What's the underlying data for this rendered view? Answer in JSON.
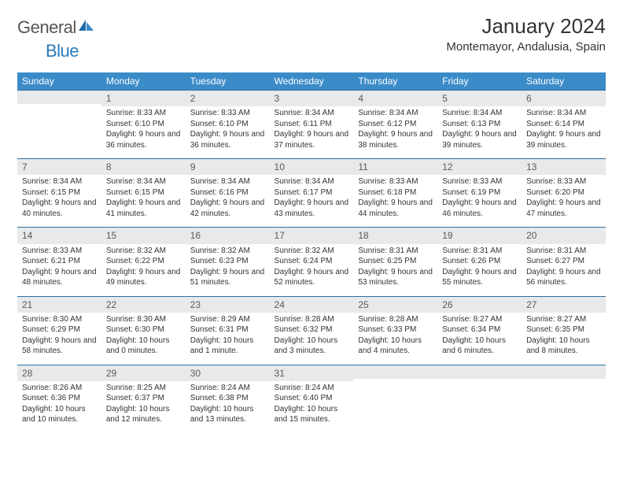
{
  "logo": {
    "text1": "General",
    "text2": "Blue"
  },
  "title": "January 2024",
  "location": "Montemayor, Andalusia, Spain",
  "weekdays": [
    "Sunday",
    "Monday",
    "Tuesday",
    "Wednesday",
    "Thursday",
    "Friday",
    "Saturday"
  ],
  "colors": {
    "header_bg": "#3b8bc9",
    "daynum_bg": "#e7e9eb",
    "day_border": "#2f6fa3"
  },
  "weeks": [
    [
      null,
      {
        "n": "1",
        "sr": "Sunrise: 8:33 AM",
        "ss": "Sunset: 6:10 PM",
        "dl": "Daylight: 9 hours and 36 minutes."
      },
      {
        "n": "2",
        "sr": "Sunrise: 8:33 AM",
        "ss": "Sunset: 6:10 PM",
        "dl": "Daylight: 9 hours and 36 minutes."
      },
      {
        "n": "3",
        "sr": "Sunrise: 8:34 AM",
        "ss": "Sunset: 6:11 PM",
        "dl": "Daylight: 9 hours and 37 minutes."
      },
      {
        "n": "4",
        "sr": "Sunrise: 8:34 AM",
        "ss": "Sunset: 6:12 PM",
        "dl": "Daylight: 9 hours and 38 minutes."
      },
      {
        "n": "5",
        "sr": "Sunrise: 8:34 AM",
        "ss": "Sunset: 6:13 PM",
        "dl": "Daylight: 9 hours and 39 minutes."
      },
      {
        "n": "6",
        "sr": "Sunrise: 8:34 AM",
        "ss": "Sunset: 6:14 PM",
        "dl": "Daylight: 9 hours and 39 minutes."
      }
    ],
    [
      {
        "n": "7",
        "sr": "Sunrise: 8:34 AM",
        "ss": "Sunset: 6:15 PM",
        "dl": "Daylight: 9 hours and 40 minutes."
      },
      {
        "n": "8",
        "sr": "Sunrise: 8:34 AM",
        "ss": "Sunset: 6:15 PM",
        "dl": "Daylight: 9 hours and 41 minutes."
      },
      {
        "n": "9",
        "sr": "Sunrise: 8:34 AM",
        "ss": "Sunset: 6:16 PM",
        "dl": "Daylight: 9 hours and 42 minutes."
      },
      {
        "n": "10",
        "sr": "Sunrise: 8:34 AM",
        "ss": "Sunset: 6:17 PM",
        "dl": "Daylight: 9 hours and 43 minutes."
      },
      {
        "n": "11",
        "sr": "Sunrise: 8:33 AM",
        "ss": "Sunset: 6:18 PM",
        "dl": "Daylight: 9 hours and 44 minutes."
      },
      {
        "n": "12",
        "sr": "Sunrise: 8:33 AM",
        "ss": "Sunset: 6:19 PM",
        "dl": "Daylight: 9 hours and 46 minutes."
      },
      {
        "n": "13",
        "sr": "Sunrise: 8:33 AM",
        "ss": "Sunset: 6:20 PM",
        "dl": "Daylight: 9 hours and 47 minutes."
      }
    ],
    [
      {
        "n": "14",
        "sr": "Sunrise: 8:33 AM",
        "ss": "Sunset: 6:21 PM",
        "dl": "Daylight: 9 hours and 48 minutes."
      },
      {
        "n": "15",
        "sr": "Sunrise: 8:32 AM",
        "ss": "Sunset: 6:22 PM",
        "dl": "Daylight: 9 hours and 49 minutes."
      },
      {
        "n": "16",
        "sr": "Sunrise: 8:32 AM",
        "ss": "Sunset: 6:23 PM",
        "dl": "Daylight: 9 hours and 51 minutes."
      },
      {
        "n": "17",
        "sr": "Sunrise: 8:32 AM",
        "ss": "Sunset: 6:24 PM",
        "dl": "Daylight: 9 hours and 52 minutes."
      },
      {
        "n": "18",
        "sr": "Sunrise: 8:31 AM",
        "ss": "Sunset: 6:25 PM",
        "dl": "Daylight: 9 hours and 53 minutes."
      },
      {
        "n": "19",
        "sr": "Sunrise: 8:31 AM",
        "ss": "Sunset: 6:26 PM",
        "dl": "Daylight: 9 hours and 55 minutes."
      },
      {
        "n": "20",
        "sr": "Sunrise: 8:31 AM",
        "ss": "Sunset: 6:27 PM",
        "dl": "Daylight: 9 hours and 56 minutes."
      }
    ],
    [
      {
        "n": "21",
        "sr": "Sunrise: 8:30 AM",
        "ss": "Sunset: 6:29 PM",
        "dl": "Daylight: 9 hours and 58 minutes."
      },
      {
        "n": "22",
        "sr": "Sunrise: 8:30 AM",
        "ss": "Sunset: 6:30 PM",
        "dl": "Daylight: 10 hours and 0 minutes."
      },
      {
        "n": "23",
        "sr": "Sunrise: 8:29 AM",
        "ss": "Sunset: 6:31 PM",
        "dl": "Daylight: 10 hours and 1 minute."
      },
      {
        "n": "24",
        "sr": "Sunrise: 8:28 AM",
        "ss": "Sunset: 6:32 PM",
        "dl": "Daylight: 10 hours and 3 minutes."
      },
      {
        "n": "25",
        "sr": "Sunrise: 8:28 AM",
        "ss": "Sunset: 6:33 PM",
        "dl": "Daylight: 10 hours and 4 minutes."
      },
      {
        "n": "26",
        "sr": "Sunrise: 8:27 AM",
        "ss": "Sunset: 6:34 PM",
        "dl": "Daylight: 10 hours and 6 minutes."
      },
      {
        "n": "27",
        "sr": "Sunrise: 8:27 AM",
        "ss": "Sunset: 6:35 PM",
        "dl": "Daylight: 10 hours and 8 minutes."
      }
    ],
    [
      {
        "n": "28",
        "sr": "Sunrise: 8:26 AM",
        "ss": "Sunset: 6:36 PM",
        "dl": "Daylight: 10 hours and 10 minutes."
      },
      {
        "n": "29",
        "sr": "Sunrise: 8:25 AM",
        "ss": "Sunset: 6:37 PM",
        "dl": "Daylight: 10 hours and 12 minutes."
      },
      {
        "n": "30",
        "sr": "Sunrise: 8:24 AM",
        "ss": "Sunset: 6:38 PM",
        "dl": "Daylight: 10 hours and 13 minutes."
      },
      {
        "n": "31",
        "sr": "Sunrise: 8:24 AM",
        "ss": "Sunset: 6:40 PM",
        "dl": "Daylight: 10 hours and 15 minutes."
      },
      null,
      null,
      null
    ]
  ]
}
